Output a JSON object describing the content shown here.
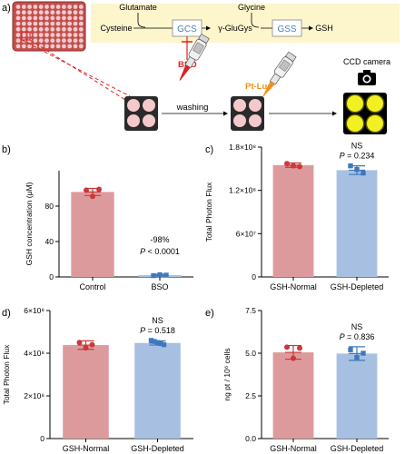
{
  "panel_a": {
    "label": "a)",
    "pathway": {
      "glutamate": "Glutamate",
      "glycine": "Glycine",
      "cysteine": "Cysteine",
      "gcs": "GCS",
      "gamma_glugys": "γ-GluGys",
      "gss": "GSS",
      "gsh": "GSH",
      "bso": "BSO"
    },
    "pt_luc": "Pt-Luc",
    "washing": "washing",
    "ccd_camera": "CCD camera",
    "colors": {
      "plate": "#c0504d",
      "well": "#f4c9cc",
      "pathway_bg": "#fdf5cc",
      "enzyme_text": "#4f81bd",
      "bso": "#e02020",
      "pt_luc": "#f0901c",
      "glow": "#f2f020"
    }
  },
  "chart_data": [
    {
      "panel": "b)",
      "type": "bar",
      "categories": [
        "Control",
        "BSO"
      ],
      "values": [
        96,
        2
      ],
      "errors": [
        4,
        1
      ],
      "points": [
        [
          98,
          91,
          99
        ],
        [
          1.5,
          2.5,
          2
        ]
      ],
      "colors": [
        "#dd9a9d",
        "#a7c0e1"
      ],
      "point_colors": [
        "#c9393a",
        "#3f78bd"
      ],
      "ylabel": "GSH concentration (μM)",
      "ylim": [
        0,
        120
      ],
      "yticks": [
        "0",
        "40",
        "80"
      ],
      "annotation": {
        "change": "-98%",
        "p_prefix": "P",
        "p_rest": " < 0.0001"
      }
    },
    {
      "panel": "c)",
      "type": "bar",
      "categories": [
        "GSH-Normal",
        "GSH-Depleted"
      ],
      "values": [
        155000000,
        148000000
      ],
      "errors": [
        3000000,
        6000000
      ],
      "points": [
        [
          157000000,
          154000000,
          153000000
        ],
        [
          154000000,
          149000000,
          144000000
        ]
      ],
      "colors": [
        "#dd9a9d",
        "#a7c0e1"
      ],
      "point_colors": [
        "#c9393a",
        "#3f78bd"
      ],
      "ylabel": "Total Photon Flux",
      "ylim": [
        0,
        180000000
      ],
      "yticks": [
        "0",
        "6×10⁷",
        "1.2×10⁸",
        "1.8×10⁸"
      ],
      "annotation": {
        "ns": "NS",
        "p_prefix": "P",
        "p_rest": " = 0.234"
      }
    },
    {
      "panel": "d)",
      "type": "bar",
      "categories": [
        "GSH-Normal",
        "GSH-Depleted"
      ],
      "values": [
        438000000,
        448000000
      ],
      "errors": [
        20000000,
        10000000
      ],
      "points": [
        [
          450000000,
          425000000,
          440000000
        ],
        [
          460000000,
          455000000,
          450000000,
          445000000,
          440000000
        ]
      ],
      "colors": [
        "#dd9a9d",
        "#a7c0e1"
      ],
      "point_colors": [
        "#c9393a",
        "#3f78bd"
      ],
      "ylabel": "Total Photon Flux",
      "ylim": [
        0,
        600000000
      ],
      "yticks": [
        "0",
        "2×10⁸",
        "4×10⁸",
        "6×10⁸"
      ],
      "annotation": {
        "ns": "NS",
        "p_prefix": "P",
        "p_rest": " = 0.518"
      }
    },
    {
      "panel": "e)",
      "type": "bar",
      "categories": [
        "GSH-Normal",
        "GSH-Depleted"
      ],
      "values": [
        5.05,
        4.98
      ],
      "errors": [
        0.4,
        0.4
      ],
      "points": [
        [
          5.35,
          4.7,
          5.3
        ],
        [
          5.2,
          4.75,
          5.0
        ]
      ],
      "colors": [
        "#dd9a9d",
        "#a7c0e1"
      ],
      "point_colors": [
        "#c9393a",
        "#3f78bd"
      ],
      "ylabel": "ng pt / 10⁶ cells",
      "ylim": [
        0,
        7.5
      ],
      "yticks": [
        "0.0",
        "2.5",
        "5.0",
        "7.5"
      ],
      "annotation": {
        "ns": "NS",
        "p_prefix": "P",
        "p_rest": " = 0.836"
      }
    }
  ]
}
